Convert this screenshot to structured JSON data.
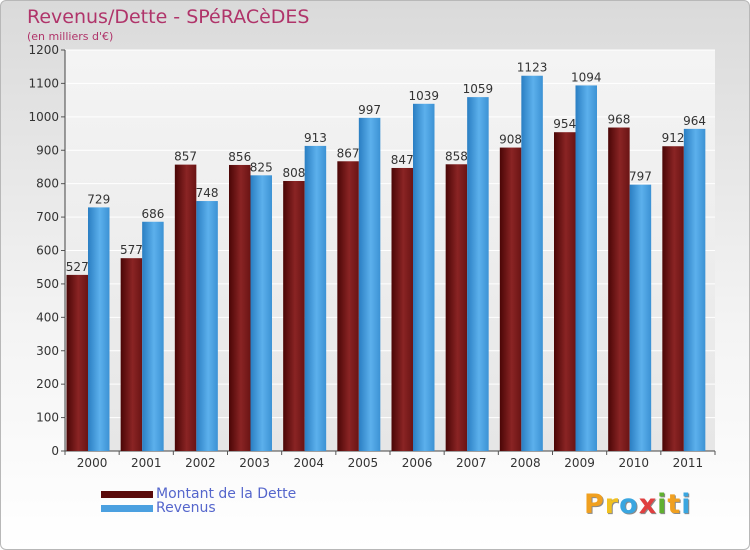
{
  "title": "Revenus/Dette - SPéRACèDES",
  "subtitle": "(en milliers d'€)",
  "logo": "Proxiti",
  "colors": {
    "title": "#b0346a",
    "debt": "#7a1a1a",
    "revenue": "#4ba0e0",
    "legend_text": "#5566cc"
  },
  "chart_data": {
    "type": "bar",
    "title": "Revenus/Dette - SPéRACèDES",
    "subtitle": "(en milliers d'€)",
    "xlabel": "",
    "ylabel": "",
    "ylim": [
      0,
      1200
    ],
    "yticks": [
      0,
      100,
      200,
      300,
      400,
      500,
      600,
      700,
      800,
      900,
      1000,
      1100,
      1200
    ],
    "grid": true,
    "legend": "bottom-left",
    "categories": [
      "2000",
      "2001",
      "2002",
      "2003",
      "2004",
      "2005",
      "2006",
      "2007",
      "2008",
      "2009",
      "2010",
      "2011"
    ],
    "series": [
      {
        "name": "Montant de la Dette",
        "color": "#7a1a1a",
        "values": [
          527,
          577,
          857,
          856,
          808,
          867,
          847,
          858,
          908,
          954,
          968,
          912
        ]
      },
      {
        "name": "Revenus",
        "color": "#4ba0e0",
        "values": [
          729,
          686,
          748,
          825,
          913,
          997,
          1039,
          1059,
          1123,
          1094,
          797,
          964
        ]
      }
    ]
  }
}
